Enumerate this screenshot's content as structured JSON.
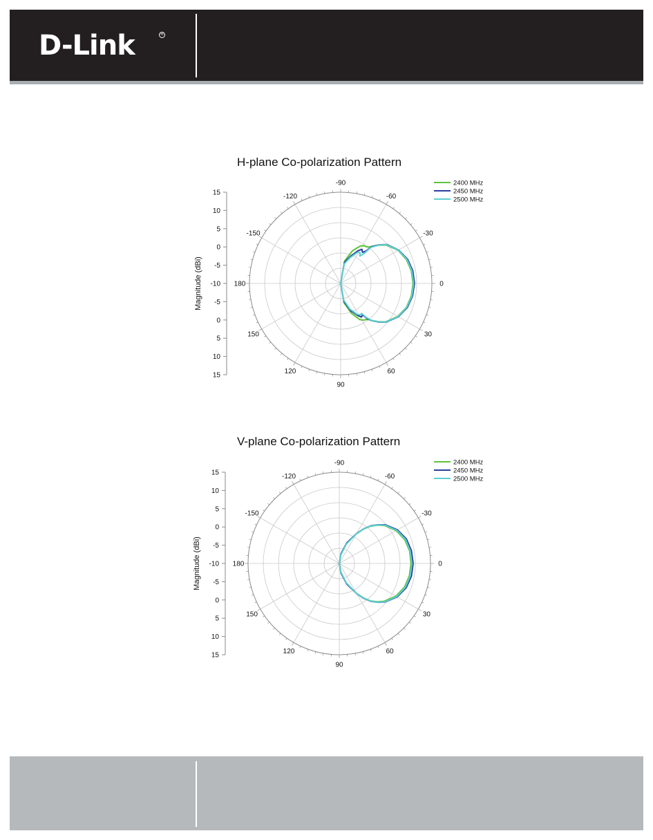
{
  "brand": {
    "logo_text": "D-Link",
    "logo_mark": "registered-mark"
  },
  "colors": {
    "header_bg": "#231f20",
    "footer_bg": "#b5b9bc",
    "series": [
      "#5cc43a",
      "#2a3d9e",
      "#5ccfd0"
    ]
  },
  "chart_data": [
    {
      "type": "polar-line",
      "title": "H-plane Co-polarization Pattern",
      "ylabel": "Magnitude (dBi)",
      "radial_ticks": [
        "15",
        "10",
        "5",
        "0",
        "-5",
        "-10",
        "-5",
        "0",
        "5",
        "10",
        "15"
      ],
      "radial_range": [
        -15,
        15
      ],
      "angle_ticks": [
        "-90",
        "-60",
        "-30",
        "0",
        "30",
        "60",
        "90",
        "120",
        "150",
        "180",
        "-150",
        "-120"
      ],
      "angles_deg": [
        -90,
        -60,
        -30,
        0,
        30,
        60,
        90,
        120,
        150,
        180,
        -150,
        -120
      ],
      "grid": true,
      "legend": "top-right",
      "series": [
        {
          "name": "2400 MHz",
          "color": "#5cc43a",
          "theta": [
            0,
            10,
            20,
            30,
            40,
            45,
            50,
            52,
            55,
            58,
            62,
            70,
            80,
            90,
            180,
            270,
            280,
            290,
            298,
            302,
            305,
            308,
            310,
            315,
            320,
            330,
            340,
            350,
            360
          ],
          "gain": [
            8.8,
            8.6,
            8.0,
            6.7,
            4.5,
            2.8,
            0.8,
            0.0,
            -0.5,
            -0.8,
            -1.5,
            -4.5,
            -8.5,
            -15.0,
            -15.0,
            -15.0,
            -7.5,
            -3.5,
            -1.0,
            -0.4,
            -0.3,
            0.2,
            0.9,
            2.8,
            4.6,
            6.8,
            8.0,
            8.6,
            8.8
          ]
        },
        {
          "name": "2450 MHz",
          "color": "#2a3d9e",
          "theta": [
            0,
            10,
            20,
            30,
            40,
            45,
            50,
            53,
            55,
            58,
            62,
            70,
            80,
            90,
            180,
            270,
            280,
            290,
            298,
            302,
            305,
            308,
            310,
            315,
            320,
            330,
            340,
            350,
            360
          ],
          "gain": [
            9.3,
            9.0,
            8.3,
            6.9,
            4.7,
            3.0,
            1.0,
            -0.5,
            -2.5,
            -2.0,
            -3.0,
            -5.5,
            -9.0,
            -15.0,
            -15.0,
            -15.0,
            -8.0,
            -5.5,
            -2.8,
            -1.8,
            -2.5,
            -1.5,
            0.8,
            3.0,
            4.9,
            7.0,
            8.4,
            9.1,
            9.3
          ]
        },
        {
          "name": "2500 MHz",
          "color": "#5ccfd0",
          "theta": [
            0,
            10,
            20,
            30,
            40,
            45,
            50,
            53,
            55,
            58,
            62,
            70,
            80,
            90,
            180,
            270,
            280,
            290,
            298,
            302,
            305,
            308,
            310,
            315,
            320,
            330,
            340,
            350,
            360
          ],
          "gain": [
            9.0,
            8.8,
            8.1,
            6.8,
            4.6,
            2.9,
            0.9,
            -1.0,
            -3.0,
            -2.8,
            -3.5,
            -6.0,
            -9.5,
            -15.0,
            -15.0,
            -15.0,
            -8.5,
            -6.0,
            -3.5,
            -3.0,
            -4.0,
            -2.5,
            0.5,
            2.9,
            4.8,
            6.9,
            8.2,
            8.8,
            9.0
          ]
        }
      ]
    },
    {
      "type": "polar-line",
      "title": "V-plane Co-polarization Pattern",
      "ylabel": "Magnitude (dBi)",
      "radial_ticks": [
        "15",
        "10",
        "5",
        "0",
        "-5",
        "-10",
        "-5",
        "0",
        "5",
        "10",
        "15"
      ],
      "radial_range": [
        -15,
        15
      ],
      "angle_ticks": [
        "-90",
        "-60",
        "-30",
        "0",
        "30",
        "60",
        "90",
        "120",
        "150",
        "180",
        "-150",
        "-120"
      ],
      "angles_deg": [
        -90,
        -60,
        -30,
        0,
        30,
        60,
        90,
        120,
        150,
        180,
        -150,
        -120
      ],
      "grid": true,
      "legend": "top-right",
      "series": [
        {
          "name": "2400 MHz",
          "color": "#5cc43a",
          "theta": [
            0,
            10,
            20,
            30,
            40,
            45,
            50,
            55,
            60,
            70,
            80,
            90,
            180,
            270,
            280,
            290,
            300,
            305,
            310,
            315,
            320,
            330,
            340,
            350,
            360
          ],
          "gain": [
            8.6,
            8.4,
            7.8,
            6.5,
            4.3,
            2.8,
            1.1,
            -1.2,
            -3.7,
            -8.0,
            -12.0,
            -15.0,
            -15.0,
            -15.0,
            -12.0,
            -8.0,
            -3.8,
            -1.3,
            1.0,
            2.8,
            4.4,
            6.6,
            7.9,
            8.5,
            8.6
          ]
        },
        {
          "name": "2450 MHz",
          "color": "#2a3d9e",
          "theta": [
            0,
            10,
            20,
            30,
            40,
            45,
            50,
            55,
            60,
            70,
            80,
            90,
            180,
            270,
            280,
            290,
            300,
            305,
            310,
            315,
            320,
            330,
            340,
            350,
            360
          ],
          "gain": [
            9.3,
            9.1,
            8.4,
            7.0,
            4.7,
            3.1,
            1.3,
            -1.0,
            -3.5,
            -7.8,
            -11.8,
            -15.0,
            -15.0,
            -15.0,
            -11.8,
            -7.8,
            -3.6,
            -1.1,
            1.2,
            3.0,
            4.8,
            7.1,
            8.5,
            9.1,
            9.3
          ]
        },
        {
          "name": "2500 MHz",
          "color": "#5ccfd0",
          "theta": [
            0,
            10,
            20,
            30,
            40,
            45,
            50,
            55,
            60,
            70,
            80,
            90,
            180,
            270,
            280,
            290,
            300,
            305,
            310,
            315,
            320,
            330,
            340,
            350,
            360
          ],
          "gain": [
            8.9,
            8.7,
            8.1,
            6.8,
            4.6,
            3.0,
            1.2,
            -1.1,
            -3.6,
            -8.2,
            -12.2,
            -15.0,
            -15.0,
            -15.0,
            -12.2,
            -8.2,
            -3.7,
            -1.2,
            1.1,
            2.9,
            4.6,
            6.8,
            8.2,
            8.7,
            8.9
          ]
        }
      ]
    }
  ]
}
